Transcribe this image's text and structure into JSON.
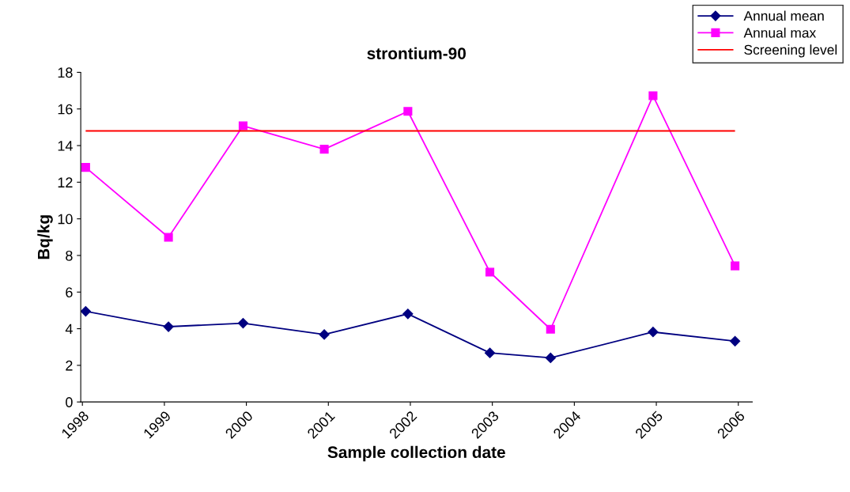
{
  "chart_data": {
    "type": "line",
    "title": "strontium-90",
    "xlabel": "Sample collection date",
    "ylabel": "Bq/kg",
    "series": [
      {
        "name": "Annual mean",
        "color": "#000080",
        "marker": "diamond",
        "x": [
          1998.04,
          1999.05,
          1999.96,
          2000.95,
          2001.97,
          2002.97,
          2003.71,
          2004.96,
          2005.96
        ],
        "values": [
          4.95,
          4.11,
          4.3,
          3.68,
          4.81,
          2.68,
          2.41,
          3.82,
          3.32
        ]
      },
      {
        "name": "Annual max",
        "color": "#ff00ff",
        "marker": "square",
        "x": [
          1998.04,
          1999.05,
          1999.96,
          2000.95,
          2001.97,
          2002.97,
          2003.71,
          2004.96,
          2005.96
        ],
        "values": [
          12.81,
          8.99,
          15.08,
          13.8,
          15.87,
          7.09,
          3.97,
          16.72,
          7.43
        ]
      }
    ],
    "ref_lines": [
      {
        "axis": "y",
        "value": 14.8,
        "label": "Screening level",
        "color": "#ff0000"
      }
    ],
    "xlim": [
      1997.98,
      2006.17
    ],
    "xticks": [
      1998,
      1999,
      2000,
      2001,
      2002,
      2003,
      2004,
      2005,
      2006
    ],
    "ylim": [
      0,
      18
    ],
    "yticks": [
      0,
      2,
      4,
      6,
      8,
      10,
      12,
      14,
      16,
      18
    ],
    "grid": false,
    "legend": "top right",
    "line_style": "solid"
  }
}
